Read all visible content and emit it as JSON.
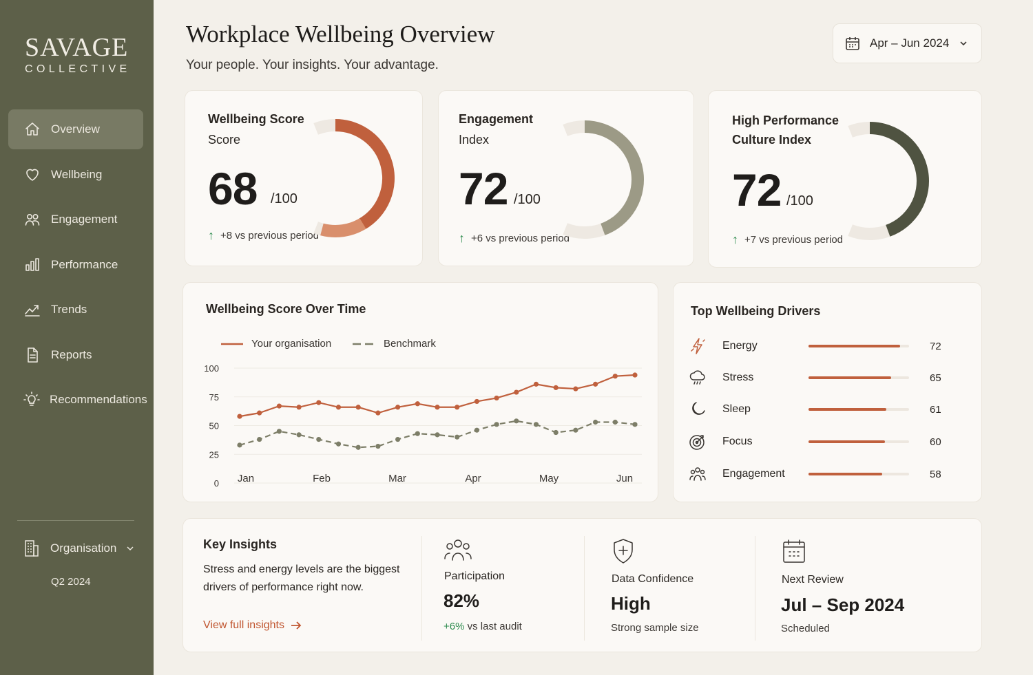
{
  "brand": {
    "name": "SAVAGE",
    "sub": "COLLECTIVE"
  },
  "sidebar": {
    "items": [
      {
        "label": "Overview",
        "icon": "home-icon",
        "active": true
      },
      {
        "label": "Wellbeing",
        "icon": "heart-icon"
      },
      {
        "label": "Engagement",
        "icon": "users-icon"
      },
      {
        "label": "Performance",
        "icon": "bar-chart-icon"
      },
      {
        "label": "Trends",
        "icon": "trend-line-icon"
      },
      {
        "label": "Reports",
        "icon": "document-icon"
      },
      {
        "label": "Recommendations",
        "icon": "lightbulb-icon"
      }
    ],
    "org_label": "Organisation",
    "org_period": "Q2 2024"
  },
  "header": {
    "title": "Workplace Wellbeing Overview",
    "subtitle": "Your people. Your insights. Your advantage.",
    "date_range": "Apr – Jun 2024"
  },
  "kpis": [
    {
      "title_line1": "Wellbeing Score",
      "title_line2": "Score",
      "value": "68",
      "denominator": "/100",
      "delta": "+8 vs previous period",
      "score": 68,
      "color": "#c0603d"
    },
    {
      "title_line1": "Engagement",
      "title_line2": "Index",
      "value": "72",
      "denominator": "/100",
      "delta": "+6 vs previous period",
      "score": 72,
      "color": "#9c9a86"
    },
    {
      "title_line1": "High Performance",
      "title_line2": "Culture Index",
      "value": "72",
      "denominator": "/100",
      "delta": "+7 vs previous period",
      "score": 72,
      "color": "#4f5341"
    }
  ],
  "trend": {
    "title": "Wellbeing Score Over Time",
    "legend_org": "Your organisation",
    "legend_bench": "Benchmark"
  },
  "chart_data": {
    "type": "line",
    "title": "Wellbeing Score Over Time",
    "x_tick_labels": [
      "Jan",
      "Feb",
      "Mar",
      "Apr",
      "May",
      "Jun"
    ],
    "y_ticks": [
      0,
      25,
      50,
      75,
      100
    ],
    "ylim": [
      0,
      100
    ],
    "series": [
      {
        "name": "Your organisation",
        "color": "#c0603d",
        "style": "solid",
        "values": [
          58,
          61,
          67,
          66,
          70,
          66,
          66,
          61,
          66,
          69,
          66,
          66,
          71,
          74,
          79,
          86,
          83,
          82,
          86,
          93,
          94
        ]
      },
      {
        "name": "Benchmark",
        "color": "#7d7e68",
        "style": "dashed",
        "values": [
          33,
          38,
          45,
          42,
          38,
          34,
          31,
          32,
          38,
          43,
          42,
          40,
          46,
          51,
          54,
          51,
          44,
          46,
          53,
          53,
          51
        ]
      }
    ]
  },
  "drivers": {
    "title": "Top Wellbeing Drivers",
    "items": [
      {
        "label": "Energy",
        "value": "72",
        "score": 72,
        "icon": "lightning-icon"
      },
      {
        "label": "Stress",
        "value": "65",
        "score": 65,
        "icon": "storm-cloud-icon"
      },
      {
        "label": "Sleep",
        "value": "61",
        "score": 61,
        "icon": "moon-icon"
      },
      {
        "label": "Focus",
        "value": "60",
        "score": 60,
        "icon": "target-icon"
      },
      {
        "label": "Engagement",
        "value": "58",
        "score": 58,
        "icon": "group-icon"
      }
    ]
  },
  "insights": {
    "title": "Key Insights",
    "text": "Stress and energy levels are the biggest drivers of performance right now.",
    "link": "View full insights",
    "participation": {
      "label": "Participation",
      "value": "82%",
      "delta": "+6%",
      "note": "vs last audit"
    },
    "confidence": {
      "label": "Data Confidence",
      "value": "High",
      "note": "Strong sample size"
    },
    "review": {
      "label": "Next Review",
      "value": "Jul – Sep 2024",
      "note": "Scheduled"
    }
  }
}
